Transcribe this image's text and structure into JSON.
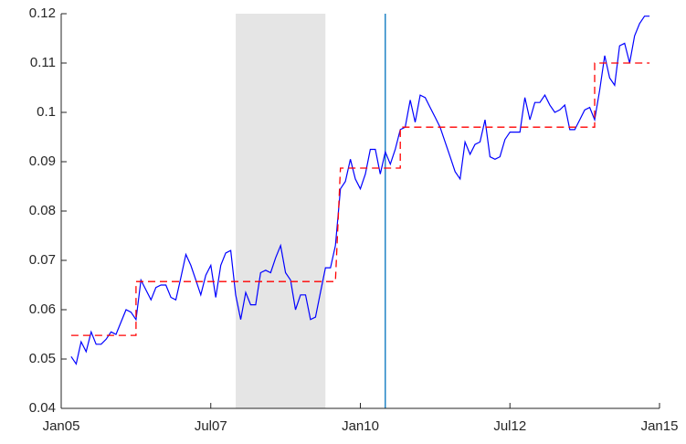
{
  "chart_data": {
    "type": "line",
    "xlim": [
      "2005-01",
      "2015-01"
    ],
    "xticks": [
      {
        "value": "2005-01",
        "label": "Jan05"
      },
      {
        "value": "2007-07",
        "label": "Jul07"
      },
      {
        "value": "2010-01",
        "label": "Jan10"
      },
      {
        "value": "2012-07",
        "label": "Jul12"
      },
      {
        "value": "2015-01",
        "label": "Jan15"
      }
    ],
    "ylim": [
      0.04,
      0.12
    ],
    "yticks": [
      0.04,
      0.05,
      0.06,
      0.07,
      0.08,
      0.09,
      0.1,
      0.11,
      0.12
    ],
    "shaded": [
      "2007-12",
      "2009-06"
    ],
    "shade_color": "#e5e5e5",
    "vline": "2010-06",
    "vline_color": "#0072bd",
    "series": [
      {
        "color": "#0000ff",
        "dash": false,
        "x": [
          "2005-03",
          "2005-04",
          "2005-05",
          "2005-06",
          "2005-07",
          "2005-08",
          "2005-09",
          "2005-10",
          "2005-11",
          "2005-12",
          "2006-01",
          "2006-02",
          "2006-03",
          "2006-04",
          "2006-05",
          "2006-06",
          "2006-07",
          "2006-08",
          "2006-09",
          "2006-10",
          "2006-11",
          "2006-12",
          "2007-01",
          "2007-02",
          "2007-03",
          "2007-04",
          "2007-05",
          "2007-06",
          "2007-07",
          "2007-08",
          "2007-09",
          "2007-10",
          "2007-11",
          "2007-12",
          "2008-01",
          "2008-02",
          "2008-03",
          "2008-04",
          "2008-05",
          "2008-06",
          "2008-07",
          "2008-08",
          "2008-09",
          "2008-10",
          "2008-11",
          "2008-12",
          "2009-01",
          "2009-02",
          "2009-03",
          "2009-04",
          "2009-05",
          "2009-06",
          "2009-07",
          "2009-08",
          "2009-09",
          "2009-10",
          "2009-11",
          "2009-12",
          "2010-01",
          "2010-02",
          "2010-03",
          "2010-04",
          "2010-05",
          "2010-06",
          "2010-07",
          "2010-08",
          "2010-09",
          "2010-10",
          "2010-11",
          "2010-12",
          "2011-01",
          "2011-02",
          "2011-03",
          "2011-04",
          "2011-05",
          "2011-06",
          "2011-07",
          "2011-08",
          "2011-09",
          "2011-10",
          "2011-11",
          "2011-12",
          "2012-01",
          "2012-02",
          "2012-03",
          "2012-04",
          "2012-05",
          "2012-06",
          "2012-07",
          "2012-08",
          "2012-09",
          "2012-10",
          "2012-11",
          "2012-12",
          "2013-01",
          "2013-02",
          "2013-03",
          "2013-04",
          "2013-05",
          "2013-06",
          "2013-07",
          "2013-08",
          "2013-09",
          "2013-10",
          "2013-11",
          "2013-12",
          "2014-01",
          "2014-02",
          "2014-03",
          "2014-04",
          "2014-05",
          "2014-06",
          "2014-07",
          "2014-08",
          "2014-09",
          "2014-10",
          "2014-11"
        ],
        "values": [
          0.0505,
          0.049,
          0.0535,
          0.0515,
          0.0555,
          0.053,
          0.053,
          0.054,
          0.0555,
          0.055,
          0.0575,
          0.06,
          0.0595,
          0.058,
          0.066,
          0.064,
          0.062,
          0.0645,
          0.065,
          0.065,
          0.0625,
          0.062,
          0.0665,
          0.0712,
          0.069,
          0.066,
          0.063,
          0.067,
          0.069,
          0.0625,
          0.069,
          0.0715,
          0.072,
          0.063,
          0.058,
          0.0635,
          0.061,
          0.061,
          0.0675,
          0.068,
          0.0675,
          0.0705,
          0.073,
          0.0675,
          0.066,
          0.06,
          0.063,
          0.063,
          0.058,
          0.0585,
          0.0635,
          0.0685,
          0.0685,
          0.073,
          0.0845,
          0.086,
          0.0905,
          0.0865,
          0.0845,
          0.0875,
          0.0925,
          0.0925,
          0.0875,
          0.092,
          0.0895,
          0.0925,
          0.0965,
          0.097,
          0.1025,
          0.098,
          0.1035,
          0.103,
          0.101,
          0.099,
          0.097,
          0.094,
          0.091,
          0.088,
          0.0865,
          0.094,
          0.0915,
          0.0935,
          0.094,
          0.0985,
          0.091,
          0.0905,
          0.091,
          0.0945,
          0.096,
          0.096,
          0.096,
          0.103,
          0.0985,
          0.102,
          0.102,
          0.1035,
          0.1015,
          0.1,
          0.1005,
          0.1015,
          0.0965,
          0.0965,
          0.0985,
          0.1005,
          0.101,
          0.0985,
          0.1045,
          0.1115,
          0.107,
          0.1055,
          0.1135,
          0.114,
          0.11,
          0.1155,
          0.118,
          0.1195,
          0.1195
        ]
      },
      {
        "color": "#ff0000",
        "dash": true,
        "x": [
          "2005-03",
          "2006-04",
          "2006-04",
          "2009-08",
          "2009-09",
          "2010-09",
          "2010-09",
          "2013-12",
          "2013-12",
          "2014-11"
        ],
        "values": [
          0.0548,
          0.0548,
          0.0657,
          0.0657,
          0.0887,
          0.0887,
          0.097,
          0.097,
          0.11,
          0.11
        ]
      }
    ]
  }
}
